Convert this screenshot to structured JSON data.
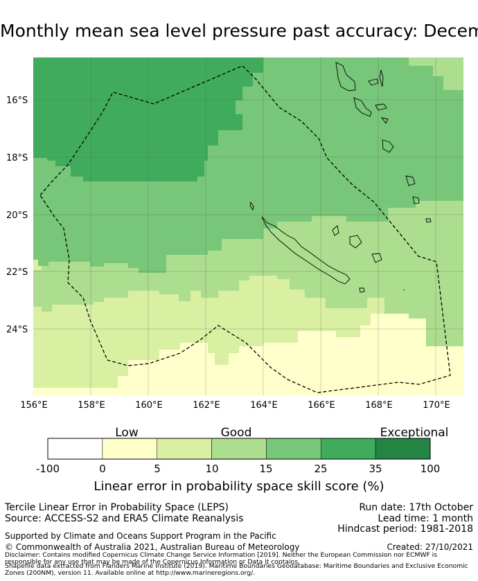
{
  "title": "Monthly mean sea level pressure past accuracy: December",
  "map": {
    "lat_labels": [
      "16°S",
      "18°S",
      "20°S",
      "22°S",
      "24°S"
    ],
    "lon_labels": [
      "156°E",
      "158°E",
      "160°E",
      "162°E",
      "164°E",
      "166°E",
      "168°E",
      "170°E"
    ],
    "boundary": "Maritime Boundaries (EEZ) - dashed outline",
    "region": "New Caledonia"
  },
  "colorbar": {
    "categories": [
      "Low",
      "Good",
      "Exceptional"
    ],
    "ticks": [
      "-100",
      "0",
      "5",
      "10",
      "15",
      "25",
      "35",
      "100"
    ],
    "colors": [
      "#ffffff",
      "#ffffcc",
      "#d9f0a3",
      "#addd8e",
      "#78c679",
      "#41ab5d",
      "#238443"
    ],
    "label": "Linear error in probability space skill score (%)"
  },
  "footer": {
    "product": "Tercile Linear Error in Probability Space (LEPS)",
    "source": "Source: ACCESS-S2 and ERA5 Climate Reanalysis",
    "run_date": "Run date: 17th October",
    "lead_time": "Lead time: 1 month",
    "hindcast": "Hindcast period: 1981-2018",
    "support": "Supported by Climate and Oceans Support Program in the Pacific",
    "copyright": "© Commonwealth of Australia 2021, Australian Bureau of Meteorology",
    "created": "Created: 27/10/2021",
    "disclaimer_1": "Disclaimer: Contains modified Copernicus Climate Change Service Information [2019]. Neither the European Commission nor ECMWF is",
    "disclaimer_2": "responsible for any use that may be made of the Copernicus Information or Data it contains.",
    "disclaimer_3": "Shapefile data extracted from Flanders Marine Institute (2019). Maritime Boundaries Geodatabase: Maritime Boundaries and Exclusive Economic",
    "disclaimer_4": "Zones (200NM), version 11. Available online at http://www.marineregions.org/."
  }
}
